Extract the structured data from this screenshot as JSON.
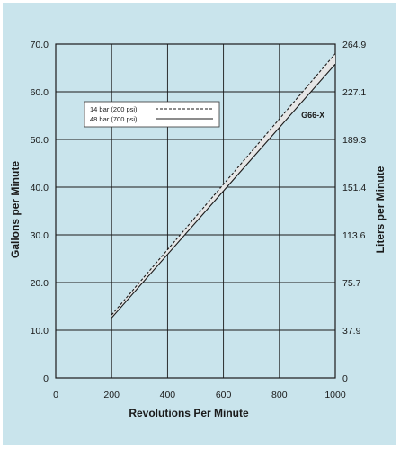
{
  "chart_data": {
    "type": "line",
    "xlabel": "Revolutions Per Minute",
    "ylabel": "Gallons per Minute",
    "y2label": "Liters per Minute",
    "xlim": [
      0,
      1000
    ],
    "ylim": [
      0,
      70
    ],
    "y2lim": [
      0,
      264.9
    ],
    "grid": true,
    "legend_position": "top-left",
    "x_ticks": [
      "0",
      "200",
      "400",
      "600",
      "800",
      "1000"
    ],
    "y_ticks": [
      "0",
      "10.0",
      "20.0",
      "30.0",
      "40.0",
      "50.0",
      "60.0",
      "70.0"
    ],
    "y2_ticks": [
      "0",
      "37.9",
      "75.7",
      "113.6",
      "151.4",
      "189.3",
      "227.1",
      "264.9"
    ],
    "series": [
      {
        "name": "14 bar (200 psi)",
        "style": "dashed",
        "x": [
          200,
          1000
        ],
        "y": [
          13.2,
          68.0
        ]
      },
      {
        "name": "48 bar (700 psi)",
        "style": "solid",
        "x": [
          200,
          1000
        ],
        "y": [
          12.6,
          65.8
        ]
      }
    ],
    "band_color": "#e6e6e6",
    "annotation": "G66-X",
    "annotation_x": 920,
    "annotation_y": 54.5
  }
}
